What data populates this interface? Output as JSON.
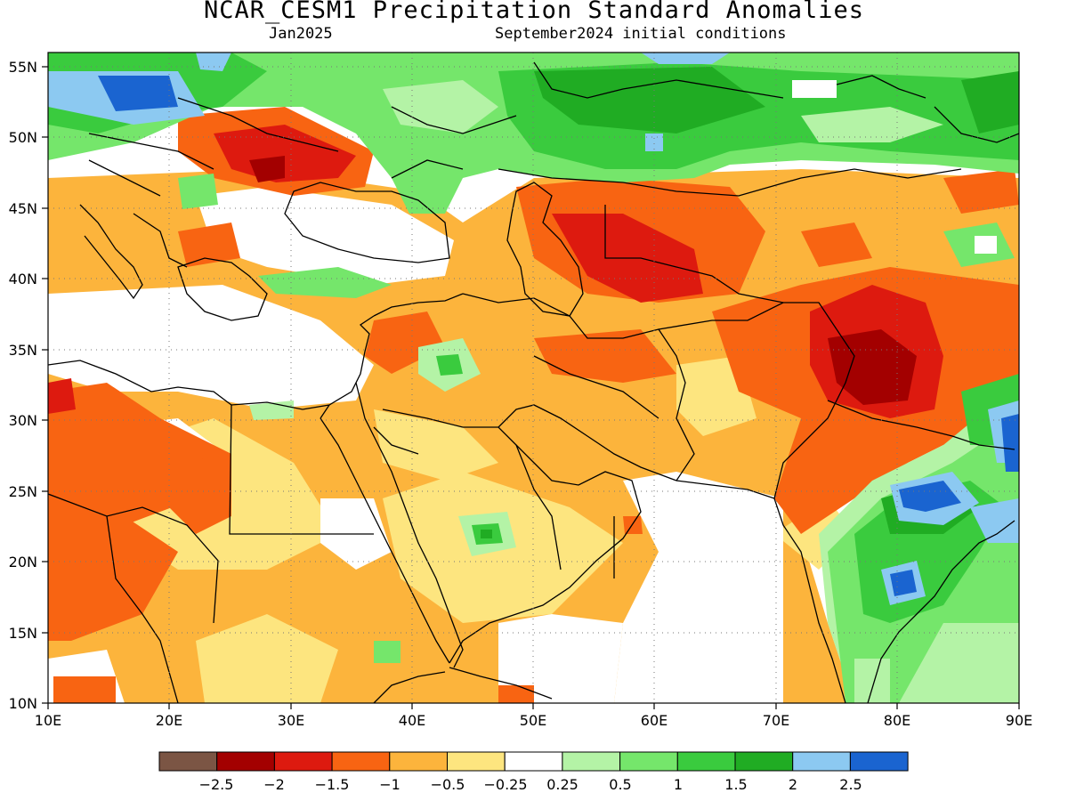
{
  "header": {
    "title": "NCAR_CESM1 Precipitation Standard Anomalies",
    "target_month": "Jan2025",
    "init_conditions": "September2024 initial conditions"
  },
  "map": {
    "lon_range": [
      10,
      90
    ],
    "lat_range": [
      10,
      56
    ],
    "lon_ticks": [
      "10E",
      "20E",
      "30E",
      "40E",
      "50E",
      "60E",
      "70E",
      "80E",
      "90E"
    ],
    "lat_ticks": [
      "55N",
      "50N",
      "45N",
      "40N",
      "35N",
      "30N",
      "25N",
      "20N",
      "15N",
      "10N"
    ],
    "grid": "dotted"
  },
  "colorbar": {
    "colors": [
      "#7b5544",
      "#a30000",
      "#dd1a0f",
      "#f86412",
      "#fcb43c",
      "#fde57f",
      "#ffffff",
      "#b4f3a6",
      "#75e66b",
      "#3acb3e",
      "#20ac23",
      "#8cc9f1",
      "#1a64d0"
    ],
    "tick_labels": [
      "−2.5",
      "−2",
      "−1.5",
      "−1",
      "−0.5",
      "−0.25",
      "0.25",
      "0.5",
      "1",
      "1.5",
      "2",
      "2.5"
    ]
  }
}
